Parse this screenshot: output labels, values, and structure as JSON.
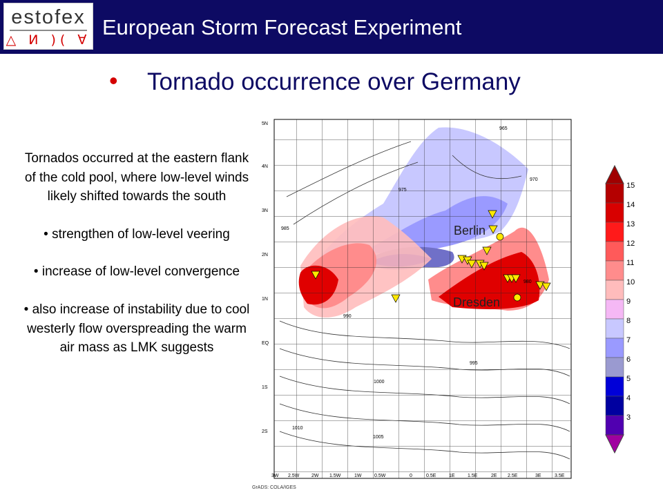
{
  "header": {
    "logo_text": "estofex",
    "logo_glyphs": "△ И )( ∀",
    "title": "European Storm Forecast Experiment"
  },
  "slide": {
    "title": "Tornado occurrence over Germany"
  },
  "text": {
    "intro": "Tornados occurred at the eastern flank of the cold pool, where low-level winds likely shifted towards the south",
    "point1": "• strengthen of low-level veering",
    "point2": "• increase of low-level convergence",
    "point3": "• also increase of instability due to cool westerly flow overspreading the warm air mass as LMK suggests"
  },
  "map": {
    "cities": [
      "Berlin",
      "Dresden"
    ],
    "y_ticks": [
      "5N",
      "4N",
      "3N",
      "2N",
      "1N",
      "EQ",
      "1S",
      "2S"
    ],
    "x_ticks": [
      "3W",
      "2.5W",
      "2W",
      "1.5W",
      "1W",
      "0.5W",
      "0",
      "0.5E",
      "1E",
      "1.5E",
      "2E",
      "2.5E",
      "3E",
      "3.5E"
    ],
    "contour_labels": [
      "965",
      "970",
      "975",
      "980",
      "985",
      "990",
      "995",
      "1000",
      "1005",
      "1010"
    ],
    "credit": "GrADS: COLA/IGES"
  },
  "legend": {
    "values": [
      "15",
      "14",
      "13",
      "12",
      "11",
      "10",
      "9",
      "8",
      "7",
      "6",
      "5",
      "4",
      "3"
    ],
    "colors": [
      "#b40000",
      "#d80000",
      "#ff1a1a",
      "#ff5a5a",
      "#ff8c8c",
      "#ffbcbc",
      "#f5b8f5",
      "#c8c8ff",
      "#9a9aff",
      "#9a9ad0",
      "#0000d8",
      "#0000a0",
      "#5000b0"
    ],
    "top_color": "#a00000",
    "bottom_color": "#a000a0"
  }
}
